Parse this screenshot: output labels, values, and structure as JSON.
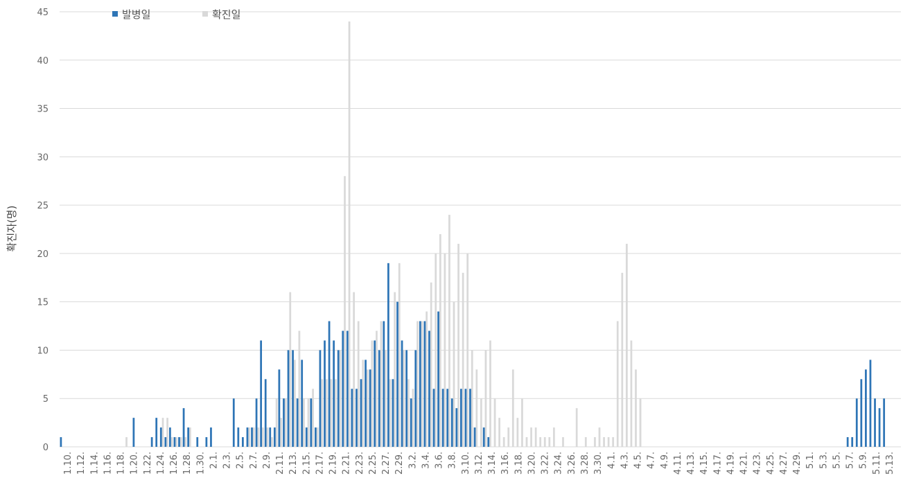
{
  "chart_data": {
    "type": "bar",
    "ylabel": "확진자(명)",
    "xlabel": "",
    "title": "",
    "ylim": [
      0,
      45
    ],
    "yticks": [
      0,
      5,
      10,
      15,
      20,
      25,
      30,
      35,
      40,
      45
    ],
    "grid": "horizontal",
    "legend_placement": "top-left",
    "x_tick_labels": [
      "1.10.",
      "1.12.",
      "1.14.",
      "1.16.",
      "1.18.",
      "1.20.",
      "1.22.",
      "1.24.",
      "1.26.",
      "1.28.",
      "1.30.",
      "2.1.",
      "2.3.",
      "2.5.",
      "2.7.",
      "2.9.",
      "2.11.",
      "2.13.",
      "2.15.",
      "2.17.",
      "2.19.",
      "2.21.",
      "2.23.",
      "2.25.",
      "2.27.",
      "2.29.",
      "3.2.",
      "3.4.",
      "3.6.",
      "3.8.",
      "3.10.",
      "3.12.",
      "3.14.",
      "3.16.",
      "3.18.",
      "3.20.",
      "3.22.",
      "3.24.",
      "3.26.",
      "3.28.",
      "3.30.",
      "4.1.",
      "4.3.",
      "4.5.",
      "4.7.",
      "4.9.",
      "4.11.",
      "4.13.",
      "4.15.",
      "4.17.",
      "4.19.",
      "4.21.",
      "4.23.",
      "4.25.",
      "4.27.",
      "4.29.",
      "5.1.",
      "5.3.",
      "5.5.",
      "5.7.",
      "5.9.",
      "5.11.",
      "5.13."
    ],
    "series": [
      {
        "name": "발병일",
        "color": "#2e75b6",
        "values": [
          1,
          0,
          0,
          0,
          0,
          0,
          0,
          0,
          0,
          0,
          0,
          0,
          0,
          0,
          0,
          0,
          3,
          0,
          0,
          0,
          1,
          3,
          2,
          1,
          2,
          1,
          1,
          4,
          2,
          0,
          1,
          0,
          1,
          2,
          0,
          0,
          0,
          0,
          5,
          2,
          1,
          2,
          2,
          5,
          11,
          7,
          2,
          2,
          8,
          5,
          10,
          10,
          5,
          9,
          2,
          5,
          2,
          10,
          11,
          13,
          11,
          10,
          12,
          12,
          6,
          6,
          7,
          9,
          8,
          11,
          10,
          13,
          19,
          7,
          15,
          11,
          10,
          5,
          10,
          13,
          13,
          12,
          6,
          14,
          6,
          6,
          5,
          4,
          6,
          6,
          6,
          2,
          0,
          2,
          1,
          0,
          0,
          0,
          0,
          0,
          0,
          0,
          0,
          0,
          0,
          0,
          0,
          0,
          0,
          0,
          0,
          0,
          0,
          0,
          0,
          0,
          0,
          0,
          0,
          0,
          0,
          0,
          0,
          0,
          0,
          0,
          0,
          0,
          0,
          0,
          0,
          0,
          0,
          0,
          0,
          0,
          0,
          0,
          0,
          0,
          0,
          0,
          0,
          0,
          0,
          0,
          0,
          0,
          0,
          0,
          0,
          0,
          0,
          0,
          0,
          0,
          0,
          0,
          0,
          0,
          0,
          0,
          0,
          0,
          0,
          0,
          0,
          0,
          0,
          0,
          0,
          0,
          0,
          1,
          1,
          5,
          7,
          8,
          9,
          5,
          4,
          5,
          0,
          0,
          0
        ],
        "values_note": ""
      },
      {
        "name": "확진일",
        "color": "#d9d9d9",
        "values": [
          0,
          0,
          0,
          0,
          0,
          0,
          0,
          0,
          0,
          0,
          0,
          0,
          0,
          0,
          1,
          0,
          0,
          0,
          0,
          0,
          0,
          0,
          3,
          3,
          1,
          1,
          1,
          1,
          2,
          0,
          0,
          0,
          0,
          0,
          0,
          0,
          0,
          0,
          0,
          0,
          0,
          2,
          2,
          2,
          2,
          2,
          1,
          5,
          3,
          5,
          16,
          9,
          12,
          5,
          5,
          6,
          2,
          7,
          7,
          7,
          7,
          10,
          28,
          44,
          16,
          13,
          9,
          8,
          11,
          12,
          13,
          10,
          7,
          16,
          19,
          10,
          7,
          6,
          13,
          13,
          14,
          17,
          20,
          22,
          20,
          24,
          15,
          21,
          18,
          20,
          10,
          8,
          5,
          10,
          11,
          5,
          3,
          1,
          2,
          8,
          3,
          5,
          1,
          2,
          2,
          1,
          1,
          1,
          2,
          0,
          1,
          0,
          0,
          4,
          0,
          1,
          0,
          1,
          2,
          1,
          1,
          1,
          13,
          18,
          21,
          11,
          8,
          5
        ]
      }
    ]
  }
}
